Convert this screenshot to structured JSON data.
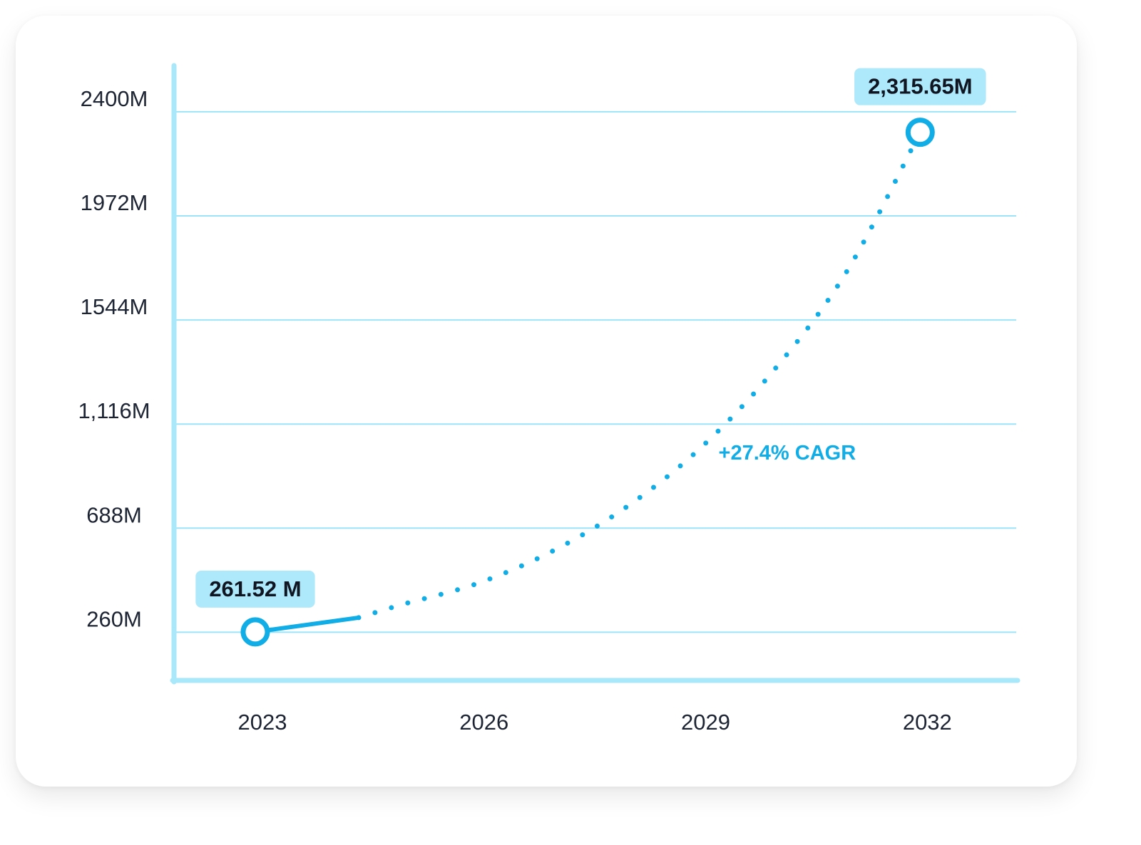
{
  "colors": {
    "line": "#10ade6",
    "grid": "#9be4fa",
    "axis": "#a9e7fb",
    "badge": "#aee9fb",
    "text": "#1d2433"
  },
  "chart_data": {
    "type": "line",
    "x_ticks": [
      "2023",
      "2026",
      "2029",
      "2032"
    ],
    "y_ticks": [
      "260M",
      "688M",
      "1,116M",
      "1544M",
      "1972M",
      "2400M"
    ],
    "y_tick_values": [
      260,
      688,
      1116,
      1544,
      1972,
      2400
    ],
    "ylim": [
      62,
      2590
    ],
    "xlim": [
      2021.9,
      2033.3
    ],
    "grid": true,
    "series": [
      {
        "style": "solid",
        "points": [
          {
            "x": 2023,
            "y": 261.52
          },
          {
            "x": 2024.4,
            "y": 320
          }
        ]
      },
      {
        "style": "dotted",
        "points": [
          {
            "x": 2024.4,
            "y": 320
          },
          {
            "x": 2025,
            "y": 375
          },
          {
            "x": 2026,
            "y": 460
          },
          {
            "x": 2027,
            "y": 590
          },
          {
            "x": 2028,
            "y": 770
          },
          {
            "x": 2029,
            "y": 1010
          },
          {
            "x": 2030,
            "y": 1330
          },
          {
            "x": 2031,
            "y": 1740
          },
          {
            "x": 2032,
            "y": 2315.65
          }
        ]
      }
    ],
    "highlighted_points": [
      {
        "x": 2023,
        "y": 261.52,
        "label": "261.52 M",
        "badge_position": "above"
      },
      {
        "x": 2032,
        "y": 2315.65,
        "label": "2,315.65M",
        "badge_position": "above"
      }
    ],
    "annotation": {
      "text": "+27.4% CAGR",
      "x": 2030.2,
      "y": 1000
    }
  }
}
